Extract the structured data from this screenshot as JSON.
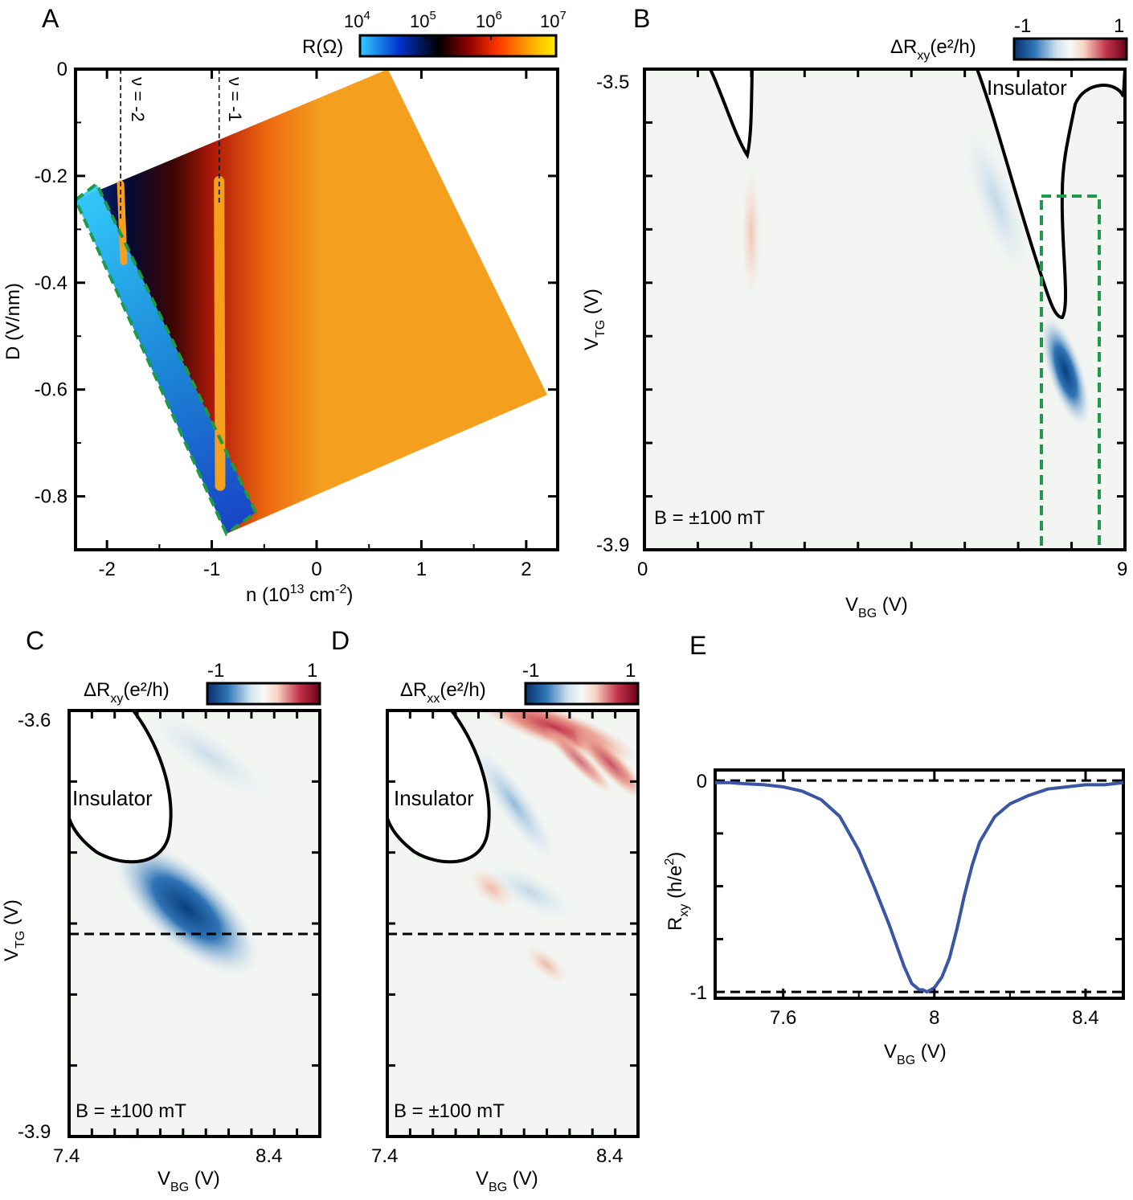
{
  "colors": {
    "cmap_R": [
      "#33ccff",
      "#0033cc",
      "#000000",
      "#8b0000",
      "#ff3300",
      "#ffaa00",
      "#ffee00"
    ],
    "cmap_div": [
      "#08306b",
      "#2f74b5",
      "#cfe3f0",
      "#f7f9f7",
      "#f8d4c4",
      "#c2334a",
      "#6b0018"
    ],
    "curve": "#3955a3",
    "dash_green": "#1f9a4a",
    "map_orange": "#f4a01e",
    "map_bg": "#f2f5f2"
  },
  "chart_data": [
    {
      "panel": "A",
      "type": "heatmap",
      "xlabel": "n (10^13 cm^-2)",
      "ylabel": "D (V/nm)",
      "xlim": [
        -2.3,
        2.3
      ],
      "ylim": [
        -0.9,
        0.0
      ],
      "xticks": [
        -2,
        -1,
        0,
        1,
        2
      ],
      "xtick_labels": [
        "-2",
        "-1",
        "0",
        "1",
        "2"
      ],
      "yticks": [
        0,
        -0.2,
        -0.4,
        -0.6,
        -0.8
      ],
      "ytick_labels": [
        "0",
        "-0.2",
        "-0.4",
        "-0.6",
        "-0.8"
      ],
      "colorbar": {
        "label": "R(Ω)",
        "scale": "log",
        "ticks": [
          "10^4",
          "10^5",
          "10^6",
          "10^7"
        ]
      },
      "data_region": [
        [
          -2.3,
          -0.245
        ],
        [
          0.68,
          0.0
        ],
        [
          2.2,
          -0.61
        ],
        [
          -0.86,
          -0.87
        ]
      ],
      "low_resistance_band": [
        [
          -2.3,
          -0.245
        ],
        [
          -2.1,
          -0.215
        ],
        [
          -0.58,
          -0.83
        ],
        [
          -0.86,
          -0.87
        ]
      ],
      "vertical_lines": [
        {
          "x": -1.87,
          "label": "ν = -2",
          "y_range": [
            0.0,
            -0.28
          ]
        },
        {
          "x": -0.93,
          "label": "ν = -1",
          "y_range": [
            0.0,
            -0.25
          ]
        }
      ],
      "features": [
        {
          "name": "nu=-2 resistive line",
          "points": [
            [
              -1.87,
              -0.215
            ],
            [
              -1.84,
              -0.36
            ]
          ]
        },
        {
          "name": "nu=-1 resistive line",
          "points": [
            [
              -0.93,
              -0.21
            ],
            [
              -0.92,
              -0.78
            ]
          ]
        }
      ]
    },
    {
      "panel": "B",
      "type": "heatmap",
      "xlabel": "V_BG (V)",
      "ylabel": "V_TG (V)",
      "xlim": [
        0,
        9
      ],
      "ylim": [
        -3.9,
        -3.5
      ],
      "xtick_labels": [
        "0",
        "9"
      ],
      "ytick_labels": [
        "-3.5",
        "-3.9"
      ],
      "colorbar": {
        "label": "ΔR_xy(e²/h)",
        "ticks": [
          "-1",
          "1"
        ],
        "range": [
          -1,
          1
        ]
      },
      "annotation": "B = ±100 mT",
      "region_label": "Insulator",
      "insulator_boundary": [
        [
          2.1,
          -3.5
        ],
        [
          2.1,
          -3.57
        ],
        [
          1.2,
          -3.5
        ],
        [
          6.2,
          -3.5
        ],
        [
          7.2,
          -3.5
        ],
        [
          7.8,
          -3.51
        ],
        [
          8.6,
          -3.51
        ],
        [
          8.65,
          -3.54
        ],
        [
          7.9,
          -3.57
        ],
        [
          7.75,
          -3.73
        ],
        [
          7.4,
          -3.63
        ],
        [
          6.2,
          -3.5
        ]
      ],
      "dashed_box": {
        "x": [
          7.35,
          8.0
        ],
        "y": [
          -3.9,
          -3.61
        ]
      },
      "feature": {
        "name": "negative ΔRxy lobe",
        "center": [
          7.7,
          -3.73
        ],
        "min_value": -1
      }
    },
    {
      "panel": "C",
      "type": "heatmap",
      "xlabel": "V_BG (V)",
      "ylabel": "V_TG (V)",
      "xlim": [
        7.4,
        8.5
      ],
      "ylim": [
        -3.9,
        -3.6
      ],
      "xtick_labels": [
        "7.4",
        "8.4"
      ],
      "ytick_labels": [
        "-3.6",
        "-3.9"
      ],
      "colorbar": {
        "label": "ΔR_xy(e²/h)",
        "ticks": [
          "-1",
          "1"
        ],
        "range": [
          -1,
          1
        ]
      },
      "annotation": "B = ±100 mT",
      "region_label": "Insulator",
      "dashed_line_y": -3.757,
      "feature": {
        "name": "negative ΔRxy lobe",
        "center": [
          7.95,
          -3.745
        ],
        "min_value": -1
      }
    },
    {
      "panel": "D",
      "type": "heatmap",
      "xlabel": "V_BG (V)",
      "ylabel": "",
      "xlim": [
        7.4,
        8.5
      ],
      "ylim": [
        -3.9,
        -3.6
      ],
      "xtick_labels": [
        "7.4",
        "8.4"
      ],
      "colorbar": {
        "label": "ΔR_xx(e²/h)",
        "ticks": [
          "-1",
          "1"
        ],
        "range": [
          -1,
          1
        ]
      },
      "annotation": "B = ±100 mT",
      "region_label": "Insulator",
      "dashed_line_y": -3.757
    },
    {
      "panel": "E",
      "type": "line",
      "xlabel": "V_BG (V)",
      "ylabel": "R_xy (h/e²)",
      "xlim": [
        7.42,
        8.5
      ],
      "ylim": [
        -1.03,
        0.05
      ],
      "xticks": [
        7.6,
        8.0,
        8.4
      ],
      "xtick_labels": [
        "7.6",
        "8",
        "8.4"
      ],
      "yticks": [
        0,
        -1
      ],
      "ytick_labels": [
        "0",
        "-1"
      ],
      "reference_lines_y": [
        0,
        -1
      ],
      "series": [
        {
          "x": [
            7.42,
            7.46,
            7.5,
            7.55,
            7.6,
            7.65,
            7.7,
            7.75,
            7.8,
            7.84,
            7.88,
            7.9,
            7.92,
            7.94,
            7.96,
            7.97,
            7.98,
            8.0,
            8.02,
            8.04,
            8.06,
            8.08,
            8.1,
            8.12,
            8.16,
            8.2,
            8.25,
            8.3,
            8.35,
            8.4,
            8.45,
            8.5
          ],
          "y": [
            -0.01,
            -0.01,
            -0.015,
            -0.02,
            -0.03,
            -0.05,
            -0.09,
            -0.17,
            -0.33,
            -0.5,
            -0.68,
            -0.78,
            -0.88,
            -0.96,
            -0.99,
            -0.99,
            -1.0,
            -0.98,
            -0.93,
            -0.84,
            -0.7,
            -0.54,
            -0.4,
            -0.29,
            -0.17,
            -0.11,
            -0.07,
            -0.04,
            -0.03,
            -0.02,
            -0.02,
            -0.01
          ]
        }
      ]
    }
  ],
  "labels": {
    "panel_a": "A",
    "panel_b": "B",
    "panel_c": "C",
    "panel_d": "D",
    "panel_e": "E",
    "a_xlabel": "n (10",
    "a_xlabel_exp": "13",
    "a_xlabel_unit": " cm",
    "a_xlabel_unit_exp": "-2",
    "a_xlabel_close": ")",
    "a_ylabel": "D (V/nm)",
    "a_cbar_label": "R(Ω)",
    "a_cbar_base": "10",
    "a_cbar_exp": [
      "4",
      "5",
      "6",
      "7"
    ],
    "nu_m2": "ν = -2",
    "nu_m1": "ν = -1",
    "b_cbar_label_pre": "ΔR",
    "b_cbar_label_sub": "xy",
    "b_cbar_label_post": "(e²/h)",
    "xx_sub": "xx",
    "cbar_min": "-1",
    "cbar_max": "1",
    "v": "V",
    "bg": "BG",
    "tg": "TG",
    "unit_v": " (V)",
    "annotation": "B = ±100 mT",
    "insulator": "Insulator",
    "e_ylabel_r": "R",
    "e_ylabel_sub": "xy",
    "e_ylabel_unit": " (h/e",
    "e_ylabel_sup": "2",
    "e_ylabel_close": ")"
  }
}
